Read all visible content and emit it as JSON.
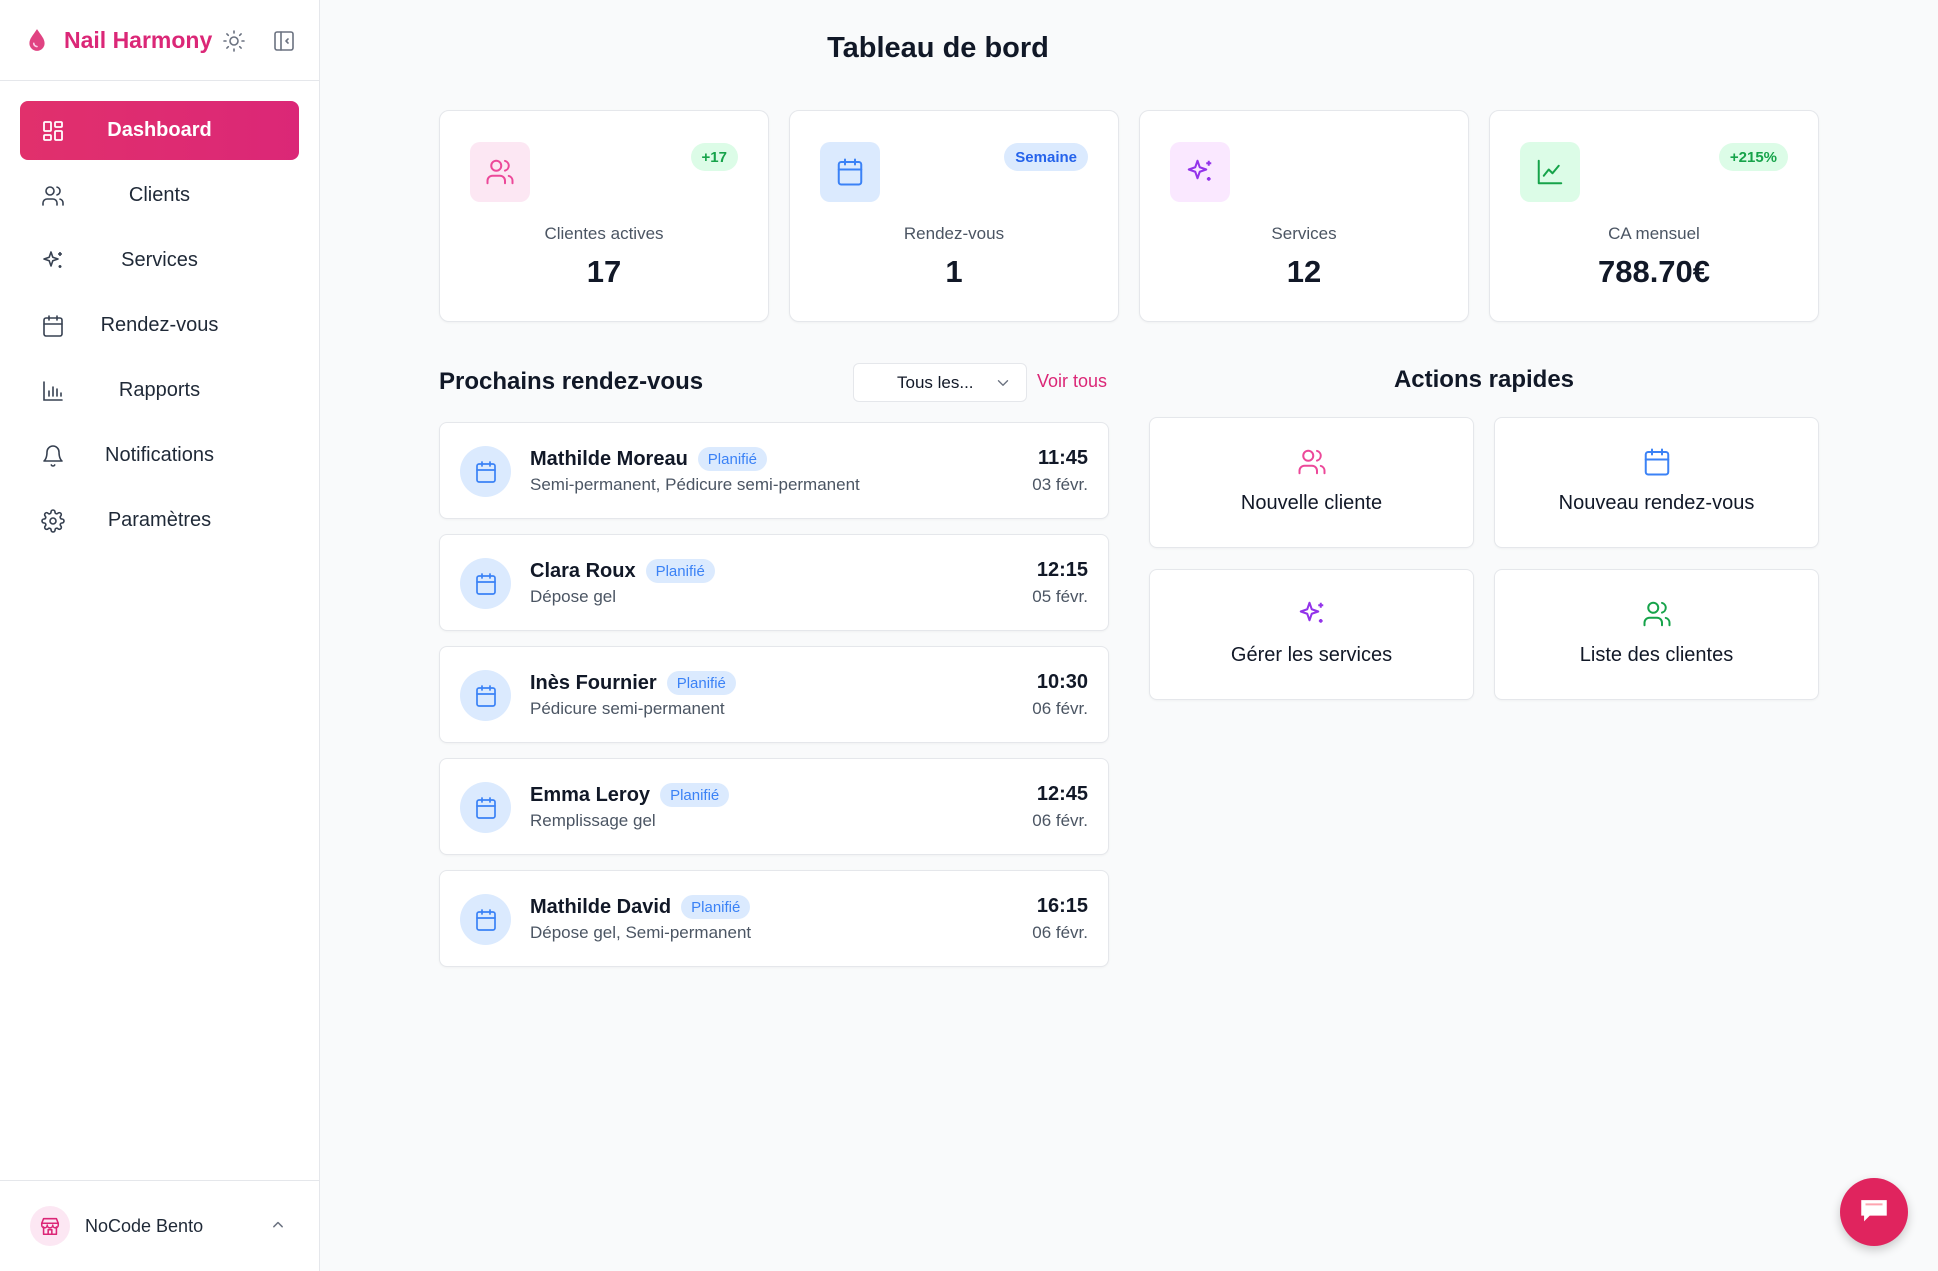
{
  "brand": {
    "name": "Nail Harmony"
  },
  "sidebar": {
    "items": [
      {
        "label": "Dashboard",
        "icon": "dashboard-icon",
        "active": true
      },
      {
        "label": "Clients",
        "icon": "users-icon"
      },
      {
        "label": "Services",
        "icon": "sparkles-icon"
      },
      {
        "label": "Rendez-vous",
        "icon": "calendar-icon"
      },
      {
        "label": "Rapports",
        "icon": "bar-chart-icon"
      },
      {
        "label": "Notifications",
        "icon": "bell-icon"
      },
      {
        "label": "Paramètres",
        "icon": "gear-icon"
      }
    ],
    "workspace": "NoCode Bento"
  },
  "page": {
    "title": "Tableau de bord"
  },
  "stats": [
    {
      "label": "Clientes actives",
      "value": "17",
      "badge": "+17",
      "color": "#ec4899"
    },
    {
      "label": "Rendez-vous",
      "value": "1",
      "badge": "Semaine",
      "color": "#3b82f6"
    },
    {
      "label": "Services",
      "value": "12",
      "badge": "",
      "color": "#9333ea"
    },
    {
      "label": "CA mensuel",
      "value": "788.70€",
      "badge": "+215%",
      "color": "#16a34a"
    }
  ],
  "appointments": {
    "title": "Prochains rendez-vous",
    "filter": "Tous les...",
    "see_all": "Voir tous",
    "items": [
      {
        "name": "Mathilde Moreau",
        "status": "Planifié",
        "services": "Semi-permanent, Pédicure semi-permanent",
        "time": "11:45",
        "date": "03 févr."
      },
      {
        "name": "Clara Roux",
        "status": "Planifié",
        "services": "Dépose gel",
        "time": "12:15",
        "date": "05 févr."
      },
      {
        "name": "Inès Fournier",
        "status": "Planifié",
        "services": "Pédicure semi-permanent",
        "time": "10:30",
        "date": "06 févr."
      },
      {
        "name": "Emma Leroy",
        "status": "Planifié",
        "services": "Remplissage gel",
        "time": "12:45",
        "date": "06 févr."
      },
      {
        "name": "Mathilde David",
        "status": "Planifié",
        "services": "Dépose gel, Semi-permanent",
        "time": "16:15",
        "date": "06 févr."
      }
    ]
  },
  "quick_actions": {
    "title": "Actions rapides",
    "items": [
      {
        "label": "Nouvelle cliente",
        "icon": "users-icon",
        "color": "#ec4899"
      },
      {
        "label": "Nouveau rendez-vous",
        "icon": "calendar-icon",
        "color": "#3b82f6"
      },
      {
        "label": "Gérer les services",
        "icon": "sparkles-icon",
        "color": "#9333ea"
      },
      {
        "label": "Liste des clientes",
        "icon": "users-icon",
        "color": "#16a34a"
      }
    ]
  },
  "colors": {
    "accent": "#db2777",
    "status_blue": "#3b82f6"
  }
}
